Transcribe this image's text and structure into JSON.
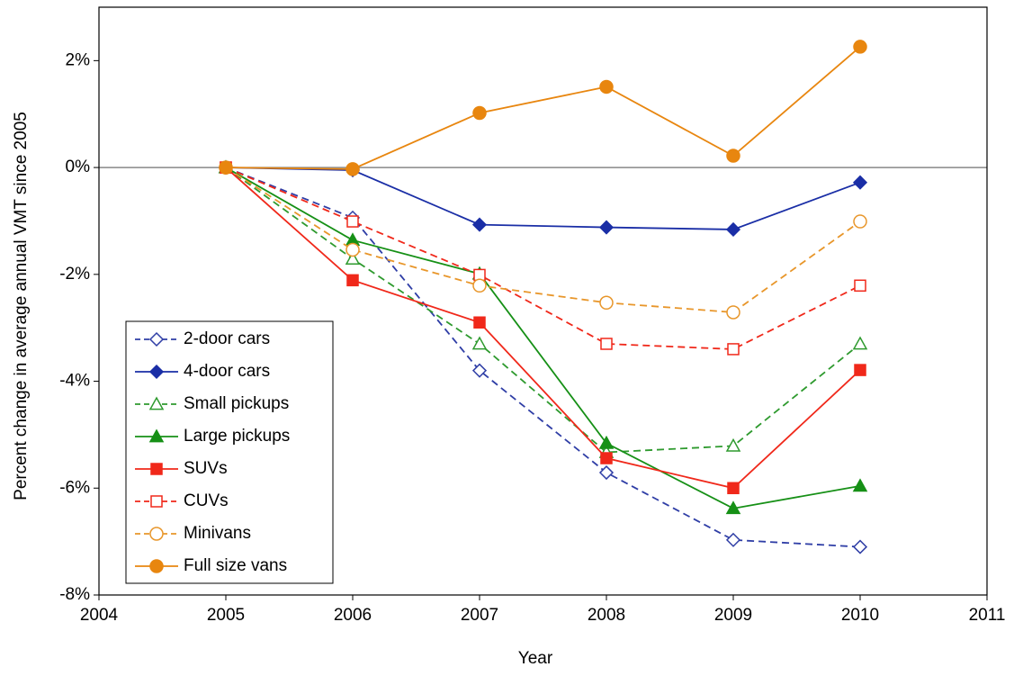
{
  "chart_data": {
    "type": "line",
    "x_label": "Year",
    "y_label": "Percent change in average annual VMT since 2005",
    "x": [
      2005,
      2006,
      2007,
      2008,
      2009,
      2010
    ],
    "xlim": [
      2004,
      2011
    ],
    "xticks": [
      2004,
      2005,
      2006,
      2007,
      2008,
      2009,
      2010,
      2011
    ],
    "ylim": [
      -8,
      3
    ],
    "yticks": [
      {
        "value": -8,
        "label": "-8%"
      },
      {
        "value": -6,
        "label": "-6%"
      },
      {
        "value": -4,
        "label": "-4%"
      },
      {
        "value": -2,
        "label": "-2%"
      },
      {
        "value": 0,
        "label": "0%"
      },
      {
        "value": 2,
        "label": "2%"
      }
    ],
    "zero_line": true,
    "legend": "lower-left",
    "series": [
      {
        "name": "2-door cars",
        "color": "#2f3ea6",
        "marker": "diamond",
        "filled": false,
        "dashed": true,
        "values": [
          0,
          -0.94,
          -3.8,
          -5.71,
          -6.97,
          -7.1
        ]
      },
      {
        "name": "4-door cars",
        "color": "#1a2ea6",
        "marker": "diamond",
        "filled": true,
        "dashed": false,
        "values": [
          0,
          -0.05,
          -1.07,
          -1.12,
          -1.16,
          -0.28
        ]
      },
      {
        "name": "Small pickups",
        "color": "#2e9a2e",
        "marker": "triangle",
        "filled": false,
        "dashed": true,
        "values": [
          0,
          -1.71,
          -3.3,
          -5.33,
          -5.21,
          -3.3
        ]
      },
      {
        "name": "Large pickups",
        "color": "#169016",
        "marker": "triangle",
        "filled": true,
        "dashed": false,
        "values": [
          0,
          -1.36,
          -1.99,
          -5.16,
          -6.38,
          -5.96
        ]
      },
      {
        "name": "SUVs",
        "color": "#f0281a",
        "marker": "square",
        "filled": true,
        "dashed": false,
        "values": [
          0,
          -2.11,
          -2.9,
          -5.44,
          -6.0,
          -3.79
        ]
      },
      {
        "name": "CUVs",
        "color": "#f0281a",
        "marker": "square",
        "filled": false,
        "dashed": true,
        "values": [
          0,
          -1.01,
          -2.01,
          -3.3,
          -3.4,
          -2.21
        ]
      },
      {
        "name": "Minivans",
        "color": "#e8962a",
        "marker": "circle",
        "filled": false,
        "dashed": true,
        "values": [
          0,
          -1.54,
          -2.21,
          -2.53,
          -2.71,
          -1.01
        ]
      },
      {
        "name": "Full size vans",
        "color": "#e8860f",
        "marker": "circle",
        "filled": true,
        "dashed": false,
        "values": [
          0,
          -0.03,
          1.02,
          1.51,
          0.22,
          2.26
        ]
      }
    ]
  }
}
